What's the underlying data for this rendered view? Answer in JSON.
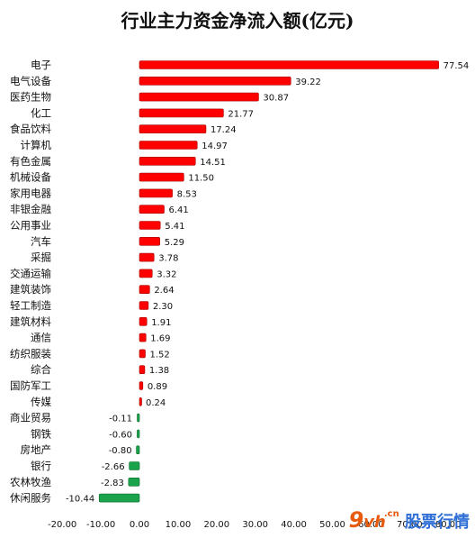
{
  "chart_data": {
    "type": "bar",
    "orientation": "horizontal",
    "title": "行业主力资金净流入额(亿元)",
    "categories": [
      "电子",
      "电气设备",
      "医药生物",
      "化工",
      "食品饮料",
      "计算机",
      "有色金属",
      "机械设备",
      "家用电器",
      "非银金融",
      "公用事业",
      "汽车",
      "采掘",
      "交通运输",
      "建筑装饰",
      "轻工制造",
      "建筑材料",
      "通信",
      "纺织服装",
      "综合",
      "国防军工",
      "传媒",
      "商业贸易",
      "钢铁",
      "房地产",
      "银行",
      "农林牧渔",
      "休闲服务"
    ],
    "values": [
      77.54,
      39.22,
      30.87,
      21.77,
      17.24,
      14.97,
      14.51,
      11.5,
      8.53,
      6.41,
      5.41,
      5.29,
      3.78,
      3.32,
      2.64,
      2.3,
      1.91,
      1.69,
      1.52,
      1.38,
      0.89,
      0.24,
      -0.11,
      -0.6,
      -0.8,
      -2.66,
      -2.83,
      -10.44
    ],
    "value_labels": [
      "77.54",
      "39.22",
      "30.87",
      "21.77",
      "17.24",
      "14.97",
      "14.51",
      "11.50",
      "8.53",
      "6.41",
      "5.41",
      "5.29",
      "3.78",
      "3.32",
      "2.64",
      "2.30",
      "1.91",
      "1.69",
      "1.52",
      "1.38",
      "0.89",
      "0.24",
      "-0.11",
      "-0.60",
      "-0.80",
      "-2.66",
      "-2.83",
      "-10.44"
    ],
    "xticks": [
      "-20.00",
      "-10.00",
      "0.00",
      "10.00",
      "20.00",
      "30.00",
      "40.00",
      "50.00",
      "60.00",
      "70.00",
      "80.00"
    ],
    "xlim": [
      -20,
      80
    ],
    "grid": false,
    "colors": {
      "positive": "#ff0000",
      "positive_dark": "#a80000",
      "negative": "#1aa34a",
      "negative_dark": "#0d6b2e"
    }
  },
  "watermark": {
    "nine": "9",
    "vh": "vh",
    "cn": ".cn",
    "text": "股票行情"
  }
}
